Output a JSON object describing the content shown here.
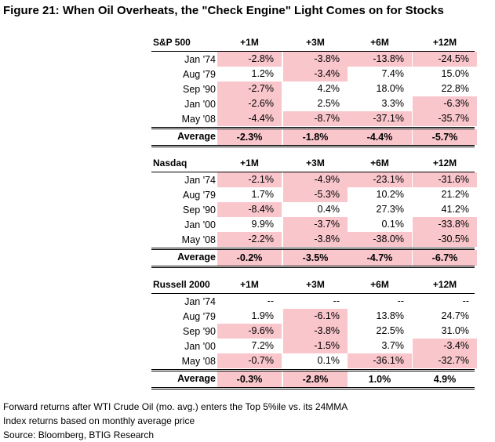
{
  "title": "Figure 21: When Oil Overheats, the \"Check Engine\" Light Comes on for Stocks",
  "columns": [
    "+1M",
    "+3M",
    "+6M",
    "+12M"
  ],
  "colors": {
    "negative_fill": "#f9c6cc"
  },
  "tables": [
    {
      "name": "S&P 500",
      "rows": [
        {
          "label": "Jan '74",
          "values": [
            "-2.8%",
            "-3.8%",
            "-13.8%",
            "-24.5%"
          ],
          "neg": [
            true,
            true,
            true,
            true
          ]
        },
        {
          "label": "Aug '79",
          "values": [
            "1.2%",
            "-3.4%",
            "7.4%",
            "15.0%"
          ],
          "neg": [
            false,
            true,
            false,
            false
          ]
        },
        {
          "label": "Sep '90",
          "values": [
            "-2.7%",
            "4.2%",
            "18.0%",
            "22.8%"
          ],
          "neg": [
            true,
            false,
            false,
            false
          ]
        },
        {
          "label": "Jan '00",
          "values": [
            "-2.6%",
            "2.5%",
            "3.3%",
            "-6.3%"
          ],
          "neg": [
            true,
            false,
            false,
            true
          ]
        },
        {
          "label": "May '08",
          "values": [
            "-4.4%",
            "-8.7%",
            "-37.1%",
            "-35.7%"
          ],
          "neg": [
            true,
            true,
            true,
            true
          ]
        }
      ],
      "average": {
        "label": "Average",
        "values": [
          "-2.3%",
          "-1.8%",
          "-4.4%",
          "-5.7%"
        ],
        "neg": [
          true,
          true,
          true,
          true
        ]
      }
    },
    {
      "name": "Nasdaq",
      "rows": [
        {
          "label": "Jan '74",
          "values": [
            "-2.1%",
            "-4.9%",
            "-23.1%",
            "-31.6%"
          ],
          "neg": [
            true,
            true,
            true,
            true
          ]
        },
        {
          "label": "Aug '79",
          "values": [
            "1.7%",
            "-5.3%",
            "10.2%",
            "21.2%"
          ],
          "neg": [
            false,
            true,
            false,
            false
          ]
        },
        {
          "label": "Sep '90",
          "values": [
            "-8.4%",
            "0.4%",
            "27.3%",
            "41.2%"
          ],
          "neg": [
            true,
            false,
            false,
            false
          ]
        },
        {
          "label": "Jan '00",
          "values": [
            "9.9%",
            "-3.7%",
            "0.1%",
            "-33.8%"
          ],
          "neg": [
            false,
            true,
            false,
            true
          ]
        },
        {
          "label": "May '08",
          "values": [
            "-2.2%",
            "-3.8%",
            "-38.0%",
            "-30.5%"
          ],
          "neg": [
            true,
            true,
            true,
            true
          ]
        }
      ],
      "average": {
        "label": "Average",
        "values": [
          "-0.2%",
          "-3.5%",
          "-4.7%",
          "-6.7%"
        ],
        "neg": [
          true,
          true,
          true,
          true
        ]
      }
    },
    {
      "name": "Russell 2000",
      "rows": [
        {
          "label": "Jan '74",
          "values": [
            "--",
            "--",
            "--",
            "--"
          ],
          "neg": [
            false,
            false,
            false,
            false
          ]
        },
        {
          "label": "Aug '79",
          "values": [
            "1.9%",
            "-6.1%",
            "13.8%",
            "24.7%"
          ],
          "neg": [
            false,
            true,
            false,
            false
          ]
        },
        {
          "label": "Sep '90",
          "values": [
            "-9.6%",
            "-3.8%",
            "22.5%",
            "31.0%"
          ],
          "neg": [
            true,
            true,
            false,
            false
          ]
        },
        {
          "label": "Jan '00",
          "values": [
            "7.2%",
            "-1.5%",
            "3.7%",
            "-3.4%"
          ],
          "neg": [
            false,
            true,
            false,
            true
          ]
        },
        {
          "label": "May '08",
          "values": [
            "-0.7%",
            "0.1%",
            "-36.1%",
            "-32.7%"
          ],
          "neg": [
            true,
            false,
            true,
            true
          ]
        }
      ],
      "average": {
        "label": "Average",
        "values": [
          "-0.3%",
          "-2.8%",
          "1.0%",
          "4.9%"
        ],
        "neg": [
          true,
          true,
          false,
          false
        ]
      }
    }
  ],
  "notes": [
    "Forward returns after WTI Crude Oil (mo. avg.) enters the Top 5%ile vs. its 24MMA",
    "Index returns based on monthly average price",
    "Source: Bloomberg, BTIG Research"
  ]
}
